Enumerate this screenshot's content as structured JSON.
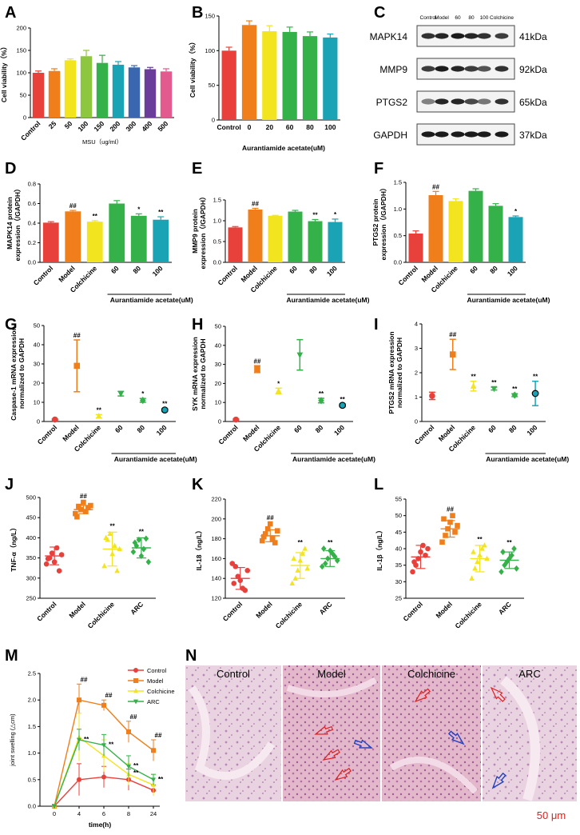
{
  "colors": {
    "red": "#e8413c",
    "orange": "#f07e1a",
    "yellow": "#f2e51f",
    "green": "#35b14a",
    "teal": "#1aa3b5",
    "purple": "#6a3d9a",
    "pink": "#e35a8e",
    "blue": "#3b66b0",
    "lightgreen": "#8dc63f"
  },
  "panels": {
    "A": "A",
    "B": "B",
    "C": "C",
    "D": "D",
    "E": "E",
    "F": "F",
    "G": "G",
    "H": "H",
    "I": "I",
    "J": "J",
    "K": "K",
    "L": "L",
    "M": "M",
    "N": "N"
  },
  "chart_data": [
    {
      "id": "A",
      "type": "bar",
      "ylabel": "Cell viability（%）",
      "xlabel": "MSU（ug/ml）",
      "ylim": [
        0,
        200
      ],
      "yticks": [
        0,
        50,
        100,
        150,
        200
      ],
      "categories": [
        "Control",
        "25",
        "50",
        "100",
        "150",
        "200",
        "300",
        "400",
        "500"
      ],
      "values": [
        100,
        104,
        128,
        137,
        122,
        118,
        112,
        108,
        103
      ],
      "errors": [
        4,
        5,
        3,
        13,
        17,
        7,
        4,
        4,
        6
      ],
      "colors": [
        "#e8413c",
        "#f07e1a",
        "#f2e51f",
        "#8dc63f",
        "#35b14a",
        "#1aa3b5",
        "#3b66b0",
        "#6a3d9a",
        "#e35a8e"
      ]
    },
    {
      "id": "B",
      "type": "bar",
      "ylabel": "Cell viability（%）",
      "xlabel": "Aurantiamide acetate(uM)",
      "ylim": [
        0,
        150
      ],
      "yticks": [
        0,
        50,
        100,
        150
      ],
      "categories": [
        "Control",
        "0",
        "20",
        "60",
        "80",
        "100"
      ],
      "values": [
        100,
        137,
        128,
        127,
        121,
        119
      ],
      "errors": [
        5,
        6,
        8,
        7,
        6,
        5
      ],
      "colors": [
        "#e8413c",
        "#f07e1a",
        "#f2e51f",
        "#35b14a",
        "#35b14a",
        "#1aa3b5"
      ]
    },
    {
      "id": "D",
      "type": "bar",
      "ylabel": "MAPK14 protein expression（/GAPDH）",
      "xlabel": "Aurantiamide acetate(uM)",
      "ylim": [
        0,
        0.8
      ],
      "yticks": [
        0,
        0.2,
        0.4,
        0.6,
        0.8
      ],
      "categories": [
        "Control",
        "Model",
        "Colchicine",
        "60",
        "80",
        "100"
      ],
      "values": [
        0.405,
        0.52,
        0.415,
        0.6,
        0.475,
        0.435
      ],
      "errors": [
        0.01,
        0.01,
        0.01,
        0.03,
        0.02,
        0.03
      ],
      "colors": [
        "#e8413c",
        "#f07e1a",
        "#f2e51f",
        "#35b14a",
        "#35b14a",
        "#1aa3b5"
      ],
      "sig": [
        "",
        "##",
        "**",
        "",
        "*",
        "**"
      ]
    },
    {
      "id": "E",
      "type": "bar",
      "ylabel": "MMP9 protein expression（/GAPDH）",
      "xlabel": "Aurantiamide acetate(uM)",
      "ylim": [
        0,
        1.5
      ],
      "yticks": [
        0.0,
        0.5,
        1.0,
        1.5
      ],
      "categories": [
        "Control",
        "Model",
        "Colchicine",
        "60",
        "80",
        "100"
      ],
      "values": [
        0.84,
        1.27,
        1.12,
        1.22,
        0.99,
        0.97
      ],
      "errors": [
        0.02,
        0.03,
        0.01,
        0.03,
        0.04,
        0.07
      ],
      "colors": [
        "#e8413c",
        "#f07e1a",
        "#f2e51f",
        "#35b14a",
        "#35b14a",
        "#1aa3b5"
      ],
      "sig": [
        "",
        "##",
        "",
        "",
        "**",
        "*"
      ]
    },
    {
      "id": "F",
      "type": "bar",
      "ylabel": "PTGS2 protein expression（/GAPDH）",
      "xlabel": "Aurantiamide acetate(uM)",
      "ylim": [
        0,
        1.5
      ],
      "yticks": [
        0.0,
        0.5,
        1.0,
        1.5
      ],
      "categories": [
        "Control",
        "Model",
        "Colchicine",
        "60",
        "80",
        "100"
      ],
      "values": [
        0.54,
        1.26,
        1.15,
        1.34,
        1.06,
        0.85
      ],
      "errors": [
        0.05,
        0.07,
        0.04,
        0.04,
        0.04,
        0.02
      ],
      "colors": [
        "#e8413c",
        "#f07e1a",
        "#f2e51f",
        "#35b14a",
        "#35b14a",
        "#1aa3b5"
      ],
      "sig": [
        "",
        "##",
        "",
        "",
        "",
        "*"
      ]
    },
    {
      "id": "G",
      "type": "scatter",
      "ylabel": "Caspase-1 mRNA expression normalized to GAPDH",
      "xlabel": "Aurantiamide acetate(uM)",
      "ylim": [
        0,
        50
      ],
      "yticks": [
        0,
        10,
        20,
        30,
        40,
        50
      ],
      "categories": [
        "Control",
        "Model",
        "Colchicine",
        "60",
        "80",
        "100"
      ],
      "values": [
        1,
        29,
        2.7,
        14.5,
        11,
        6
      ],
      "errors": [
        0.3,
        13.5,
        0.9,
        1.2,
        1,
        0.8
      ],
      "colors": [
        "#e8413c",
        "#f07e1a",
        "#f2e51f",
        "#35b14a",
        "#35b14a",
        "#1aa3b5"
      ],
      "sig": [
        "",
        "##",
        "**",
        "",
        "*",
        "**"
      ]
    },
    {
      "id": "H",
      "type": "scatter",
      "ylabel": "SYK mRNA expression normalized to GAPDH",
      "xlabel": "Aurantiamide acetate(uM)",
      "ylim": [
        0,
        50
      ],
      "yticks": [
        0,
        10,
        20,
        30,
        40,
        50
      ],
      "categories": [
        "Control",
        "Model",
        "Colchicine",
        "60",
        "80",
        "100"
      ],
      "values": [
        1,
        27.5,
        16,
        35,
        11,
        8.5
      ],
      "errors": [
        0.3,
        1.8,
        1.5,
        8,
        1.2,
        0.8
      ],
      "colors": [
        "#e8413c",
        "#f07e1a",
        "#f2e51f",
        "#35b14a",
        "#35b14a",
        "#1aa3b5"
      ],
      "sig": [
        "",
        "##",
        "*",
        "",
        "**",
        "**"
      ]
    },
    {
      "id": "I",
      "type": "scatter",
      "ylabel": "PTGS2 mRNA expression normalized to GAPDH",
      "xlabel": "Aurantiamide acetate(uM)",
      "ylim": [
        0,
        4
      ],
      "yticks": [
        0,
        1,
        2,
        3,
        4
      ],
      "categories": [
        "Control",
        "Model",
        "Colchicine",
        "60",
        "80",
        "100"
      ],
      "values": [
        1.05,
        2.75,
        1.45,
        1.35,
        1.08,
        1.15
      ],
      "errors": [
        0.15,
        0.62,
        0.2,
        0.06,
        0.06,
        0.5
      ],
      "colors": [
        "#e8413c",
        "#f07e1a",
        "#f2e51f",
        "#35b14a",
        "#35b14a",
        "#1aa3b5"
      ],
      "sig": [
        "",
        "##",
        "**",
        "**",
        "**",
        "**"
      ]
    },
    {
      "id": "J",
      "type": "scatter",
      "ylabel": "TNF-α（ng/L）",
      "ylim": [
        250,
        500
      ],
      "yticks": [
        250,
        300,
        350,
        400,
        450,
        500
      ],
      "categories": [
        "Control",
        "Model",
        "Colchicine",
        "ARC"
      ],
      "means": [
        355,
        470,
        372,
        375
      ],
      "sds": [
        22,
        10,
        42,
        25
      ],
      "points": [
        [
          335,
          350,
          362,
          340,
          375,
          318,
          358,
          348
        ],
        [
          460,
          478,
          470,
          488,
          465,
          475,
          480,
          452
        ],
        [
          330,
          395,
          410,
          360,
          380,
          318,
          372,
          400
        ],
        [
          365,
          380,
          395,
          355,
          372,
          398,
          340,
          388
        ]
      ],
      "colors": [
        "#e8413c",
        "#f07e1a",
        "#f2e51f",
        "#35b14a"
      ],
      "markers": [
        "circle",
        "square",
        "triangle",
        "diamond"
      ],
      "sig": [
        "",
        "##",
        "**",
        "**"
      ]
    },
    {
      "id": "K",
      "type": "scatter",
      "ylabel": "IL-18（ng/L）",
      "ylim": [
        120,
        220
      ],
      "yticks": [
        120,
        140,
        160,
        180,
        200,
        220
      ],
      "categories": [
        "Control",
        "Model",
        "Colchicine",
        "ARC"
      ],
      "means": [
        140,
        183,
        153,
        160
      ],
      "sds": [
        11,
        6,
        13,
        8
      ],
      "points": [
        [
          155,
          152,
          142,
          138,
          130,
          128,
          148,
          135
        ],
        [
          178,
          185,
          190,
          195,
          180,
          176,
          188,
          182
        ],
        [
          135,
          140,
          148,
          158,
          165,
          170,
          150,
          160
        ],
        [
          152,
          155,
          160,
          168,
          165,
          162,
          158,
          170
        ]
      ],
      "colors": [
        "#e8413c",
        "#f07e1a",
        "#f2e51f",
        "#35b14a"
      ],
      "markers": [
        "circle",
        "square",
        "triangle",
        "diamond"
      ],
      "sig": [
        "",
        "##",
        "**",
        "**"
      ]
    },
    {
      "id": "L",
      "type": "scatter",
      "ylabel": "IL-1β（ng/L）",
      "ylim": [
        25,
        55
      ],
      "yticks": [
        25,
        30,
        35,
        40,
        45,
        50,
        55
      ],
      "categories": [
        "Control",
        "Model",
        "Colchicine",
        "ARC"
      ],
      "means": [
        37.5,
        46,
        37,
        36.5
      ],
      "sds": [
        3.5,
        2.5,
        4,
        2.5
      ],
      "points": [
        [
          33,
          35,
          37,
          39,
          41,
          38,
          40,
          36
        ],
        [
          42,
          44,
          46,
          48,
          50,
          45,
          47,
          49
        ],
        [
          31,
          34,
          36,
          38,
          40,
          41,
          37,
          39
        ],
        [
          33,
          35,
          36,
          37,
          38,
          40,
          34,
          39
        ]
      ],
      "colors": [
        "#e8413c",
        "#f07e1a",
        "#f2e51f",
        "#35b14a"
      ],
      "markers": [
        "circle",
        "square",
        "triangle",
        "diamond"
      ],
      "sig": [
        "",
        "##",
        "**",
        "**"
      ]
    },
    {
      "id": "M",
      "type": "line",
      "ylabel": "joint swelling (△cm)",
      "xlabel": "time(h)",
      "ylim": [
        0,
        2.5
      ],
      "yticks": [
        0.0,
        0.5,
        1.0,
        1.5,
        2.0,
        2.5
      ],
      "x": [
        "0",
        "4",
        "6",
        "8",
        "24"
      ],
      "series": [
        {
          "name": "Control",
          "values": [
            0,
            0.5,
            0.55,
            0.5,
            0.3
          ],
          "errors": [
            0,
            0.3,
            0.2,
            0.2,
            0.1
          ],
          "color": "#e8413c"
        },
        {
          "name": "Model",
          "values": [
            0,
            2.0,
            1.9,
            1.4,
            1.05
          ],
          "errors": [
            0,
            0.3,
            0.1,
            0.2,
            0.2
          ],
          "color": "#f07e1a"
        },
        {
          "name": "Colchicine",
          "values": [
            0,
            1.3,
            0.95,
            0.6,
            0.4
          ],
          "errors": [
            0,
            0.45,
            0.3,
            0.2,
            0.2
          ],
          "color": "#f2e51f"
        },
        {
          "name": "ARC",
          "values": [
            0,
            1.25,
            1.15,
            0.75,
            0.5
          ],
          "errors": [
            0,
            0.2,
            0.2,
            0.2,
            0.1
          ],
          "color": "#35b14a"
        }
      ],
      "sig": [
        {
          "x": "4",
          "text": "##"
        },
        {
          "x": "6",
          "text": "##"
        },
        {
          "x": "8",
          "text": "##"
        },
        {
          "x": "24",
          "text": "##"
        },
        {
          "x": "4",
          "text": "**"
        },
        {
          "x": "6",
          "text": "**"
        },
        {
          "x": "8",
          "text": "**"
        },
        {
          "x": "8",
          "text": "**"
        },
        {
          "x": "24",
          "text": "*"
        },
        {
          "x": "24",
          "text": "**"
        }
      ]
    }
  ],
  "blot": {
    "lanes": [
      "Control",
      "Model",
      "60",
      "80",
      "100",
      "Colchicine"
    ],
    "proteins": [
      {
        "name": "MAPK14",
        "kda": "41kDa"
      },
      {
        "name": "MMP9",
        "kda": "92kDa"
      },
      {
        "name": "PTGS2",
        "kda": "65kDa"
      },
      {
        "name": "GAPDH",
        "kda": "37kDa"
      }
    ]
  },
  "histology": {
    "labels": [
      "Control",
      "Model",
      "Colchicine",
      "ARC"
    ],
    "scale": "50 μm"
  }
}
